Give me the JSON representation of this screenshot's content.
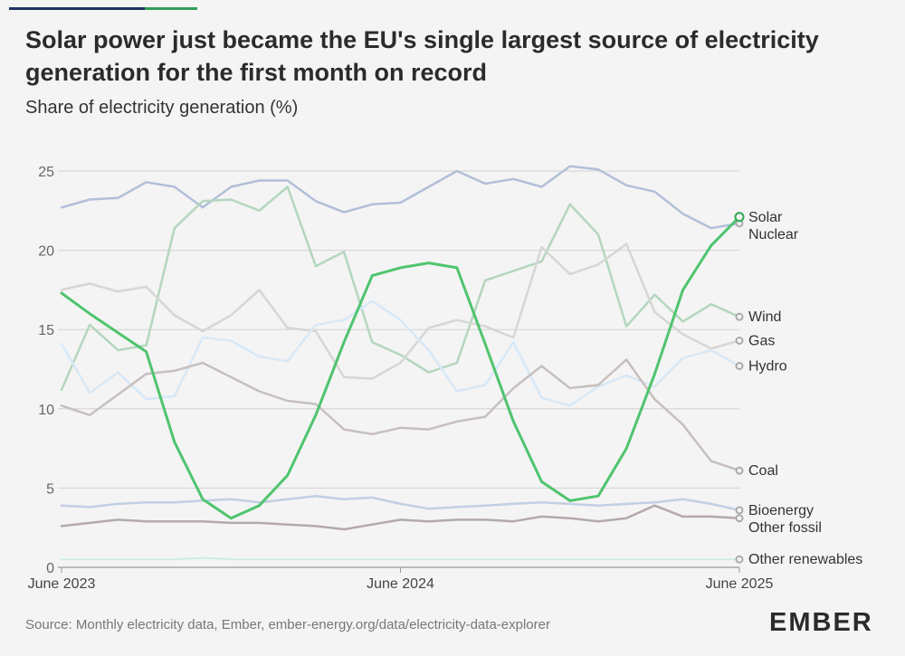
{
  "header": {
    "title": "Solar power just became the EU's single largest source of electricity generation for the first month on record",
    "subtitle": "Share of electricity generation (%)"
  },
  "footer": {
    "source": "Source: Monthly electricity data, Ember, ember-energy.org/data/electricity-data-explorer",
    "logo": "EMBER"
  },
  "colors": {
    "background": "#f4f4f4",
    "grid": "#d2d2d2",
    "topbar_dark": "#1f3060",
    "topbar_green": "#2f9e58"
  },
  "chart_data": {
    "type": "line",
    "title": "Share of electricity generation (%)",
    "xlabel": "",
    "ylabel": "Share of electricity generation (%)",
    "ylim": [
      0,
      25
    ],
    "yticks": [
      "0",
      "5",
      "10",
      "15",
      "20",
      "25"
    ],
    "x_tick_labels": [
      {
        "index": 0,
        "label": "June 2023"
      },
      {
        "index": 12,
        "label": "June 2024"
      },
      {
        "index": 24,
        "label": "June 2025"
      }
    ],
    "months": 25,
    "series": [
      {
        "name": "Nuclear",
        "color": "#b2bfd9",
        "width": 2.5,
        "values": [
          22.7,
          23.2,
          23.3,
          24.3,
          24.0,
          22.7,
          24.0,
          24.4,
          24.4,
          23.1,
          22.4,
          22.9,
          23.0,
          24.0,
          25.0,
          24.2,
          24.5,
          24.0,
          25.3,
          25.1,
          24.1,
          23.7,
          22.3,
          21.4,
          21.7
        ]
      },
      {
        "name": "Wind",
        "color": "#b4d6be",
        "width": 2.5,
        "values": [
          11.2,
          15.3,
          13.7,
          14.0,
          21.4,
          23.1,
          23.2,
          22.5,
          24.0,
          19.0,
          19.9,
          14.2,
          13.4,
          12.3,
          12.9,
          18.1,
          18.7,
          19.3,
          22.9,
          21.0,
          15.2,
          17.2,
          15.5,
          16.6,
          15.8
        ]
      },
      {
        "name": "Gas",
        "color": "#d6d6d6",
        "width": 2.5,
        "values": [
          17.5,
          17.9,
          17.4,
          17.7,
          15.9,
          14.9,
          15.9,
          17.5,
          15.1,
          14.9,
          12.0,
          11.9,
          12.9,
          15.1,
          15.6,
          15.2,
          14.5,
          20.2,
          18.5,
          19.1,
          20.4,
          16.1,
          14.7,
          13.8,
          14.3
        ]
      },
      {
        "name": "Hydro",
        "color": "#d8e8f6",
        "width": 2.5,
        "values": [
          14.1,
          11.0,
          12.3,
          10.6,
          10.8,
          14.5,
          14.3,
          13.3,
          13.0,
          15.3,
          15.6,
          16.8,
          15.6,
          13.7,
          11.1,
          11.5,
          14.2,
          10.7,
          10.2,
          11.4,
          12.1,
          11.4,
          13.2,
          13.7,
          12.7
        ]
      },
      {
        "name": "Coal",
        "color": "#c7bfbf",
        "width": 2.5,
        "values": [
          10.2,
          9.6,
          10.9,
          12.2,
          12.4,
          12.9,
          12.0,
          11.1,
          10.5,
          10.3,
          8.7,
          8.4,
          8.8,
          8.7,
          9.2,
          9.5,
          11.3,
          12.7,
          11.3,
          11.5,
          13.1,
          10.6,
          9.0,
          6.7,
          6.1
        ]
      },
      {
        "name": "Bioenergy",
        "color": "#c2cfe2",
        "width": 2.5,
        "values": [
          3.9,
          3.8,
          4.0,
          4.1,
          4.1,
          4.2,
          4.3,
          4.1,
          4.3,
          4.5,
          4.3,
          4.4,
          4.0,
          3.7,
          3.8,
          3.9,
          4.0,
          4.1,
          4.0,
          3.9,
          4.0,
          4.1,
          4.3,
          4.0,
          3.6
        ]
      },
      {
        "name": "Other fossil",
        "color": "#b4aaaa",
        "width": 2.5,
        "values": [
          2.6,
          2.8,
          3.0,
          2.9,
          2.9,
          2.9,
          2.8,
          2.8,
          2.7,
          2.6,
          2.4,
          2.7,
          3.0,
          2.9,
          3.0,
          3.0,
          2.9,
          3.2,
          3.1,
          2.9,
          3.1,
          3.9,
          3.2,
          3.2,
          3.1
        ]
      },
      {
        "name": "Other renewables",
        "color": "#cdece4",
        "width": 2,
        "values": [
          0.5,
          0.5,
          0.5,
          0.5,
          0.5,
          0.6,
          0.5,
          0.5,
          0.5,
          0.5,
          0.5,
          0.5,
          0.5,
          0.5,
          0.5,
          0.5,
          0.5,
          0.5,
          0.5,
          0.5,
          0.5,
          0.5,
          0.5,
          0.5,
          0.5
        ]
      },
      {
        "name": "Solar",
        "color": "#4fc46e",
        "width": 3,
        "values": [
          17.3,
          16.0,
          14.8,
          13.6,
          7.9,
          4.3,
          3.1,
          3.9,
          5.8,
          9.6,
          14.2,
          18.4,
          18.9,
          19.2,
          18.9,
          14.1,
          9.2,
          5.4,
          4.2,
          4.5,
          7.5,
          12.2,
          17.5,
          20.3,
          22.1
        ]
      }
    ],
    "end_labels": [
      {
        "series": "Solar",
        "text": "Solar"
      },
      {
        "series": "Nuclear",
        "text": "Nuclear"
      },
      {
        "series": "Wind",
        "text": "Wind"
      },
      {
        "series": "Gas",
        "text": "Gas"
      },
      {
        "series": "Hydro",
        "text": "Hydro"
      },
      {
        "series": "Coal",
        "text": "Coal"
      },
      {
        "series": "Bioenergy",
        "text": "Bioenergy"
      },
      {
        "series": "Other fossil",
        "text": "Other fossil"
      },
      {
        "series": "Other renewables",
        "text": "Other renewables"
      }
    ]
  }
}
